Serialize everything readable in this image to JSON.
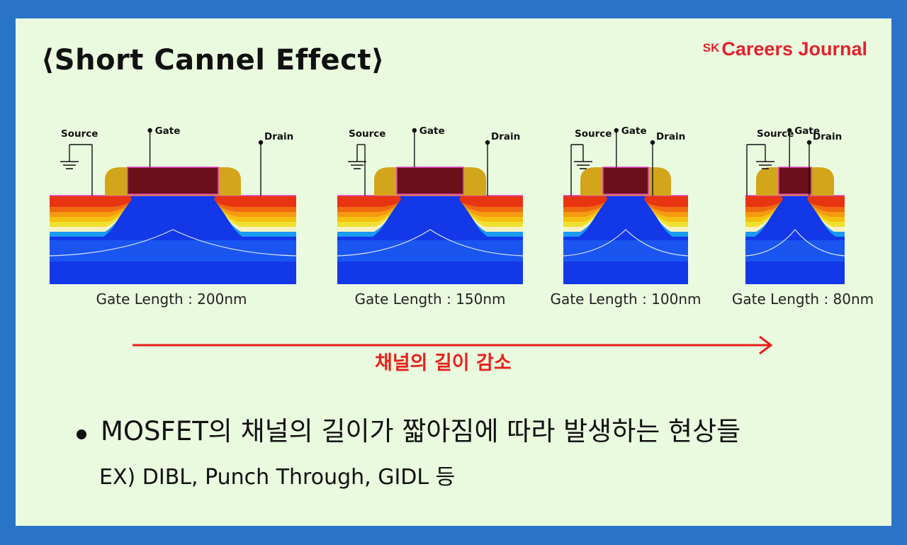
{
  "title": "⟨Short Cannel Effect⟩",
  "brand": {
    "prefix": "SK",
    "name": "Careers Journal"
  },
  "terminals": {
    "source": "Source",
    "gate": "Gate",
    "drain": "Drain"
  },
  "panels": [
    {
      "caption": "Gate Length : 200nm"
    },
    {
      "caption": "Gate Length : 150nm"
    },
    {
      "caption": "Gate Length : 100nm"
    },
    {
      "caption": "Gate Length : 80nm"
    }
  ],
  "arrow_label": "채널의 길이 감소",
  "bullet": "MOSFET의 채널의 길이가 짧아짐에 따라 발생하는 현상들",
  "example": "EX) DIBL, Punch Through, GIDL 등",
  "colors": {
    "border": "#2a74c8",
    "background": "#e9fadf",
    "accent_red": "#e8201c",
    "substrate_blue": "#1238e8",
    "gate_dark": "#6b0f1a",
    "spacer_gold": "#d2a51a"
  }
}
